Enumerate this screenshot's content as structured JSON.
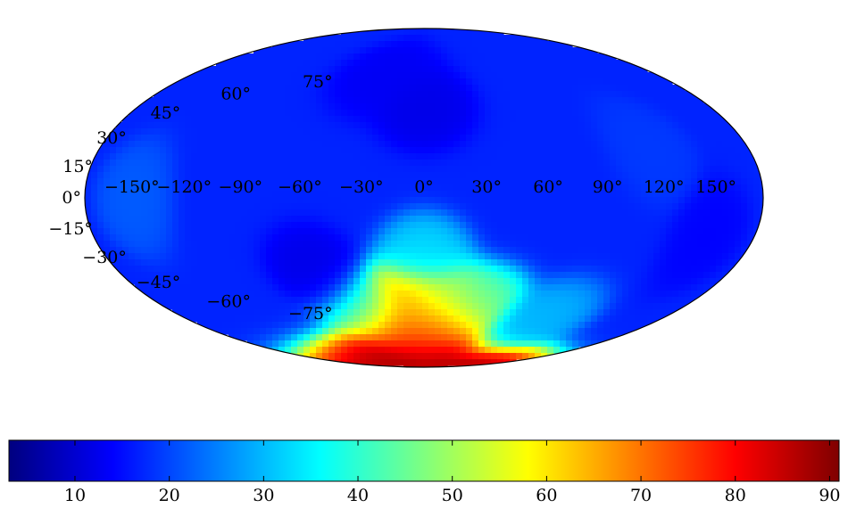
{
  "chart_data": {
    "type": "heatmap",
    "projection": "hammer",
    "title": "",
    "xlabel": "",
    "ylabel": "",
    "grid": false,
    "longitude_tick_labels": [
      {
        "value": -150,
        "label": "−150°"
      },
      {
        "value": -120,
        "label": "−120°"
      },
      {
        "value": -90,
        "label": "−90°"
      },
      {
        "value": -60,
        "label": "−60°"
      },
      {
        "value": -30,
        "label": "−30°"
      },
      {
        "value": 0,
        "label": "0°"
      },
      {
        "value": 30,
        "label": "30°"
      },
      {
        "value": 60,
        "label": "60°"
      },
      {
        "value": 90,
        "label": "90°"
      },
      {
        "value": 120,
        "label": "120°"
      },
      {
        "value": 150,
        "label": "150°"
      }
    ],
    "latitude_tick_labels": [
      {
        "value": 75,
        "label": "75°"
      },
      {
        "value": 60,
        "label": "60°"
      },
      {
        "value": 45,
        "label": "45°"
      },
      {
        "value": 30,
        "label": "30°"
      },
      {
        "value": 15,
        "label": "15°"
      },
      {
        "value": 0,
        "label": "0°"
      },
      {
        "value": -15,
        "label": "−15°"
      },
      {
        "value": -30,
        "label": "−30°"
      },
      {
        "value": -45,
        "label": "−45°"
      },
      {
        "value": -60,
        "label": "−60°"
      },
      {
        "value": -75,
        "label": "−75°"
      }
    ],
    "colormap": "jet",
    "colorbar": {
      "orientation": "horizontal",
      "placement": "bottom",
      "range": [
        3,
        91
      ],
      "ticks": [
        {
          "value": 10,
          "label": "10"
        },
        {
          "value": 20,
          "label": "20"
        },
        {
          "value": 30,
          "label": "30"
        },
        {
          "value": 40,
          "label": "40"
        },
        {
          "value": 50,
          "label": "50"
        },
        {
          "value": 60,
          "label": "60"
        },
        {
          "value": 70,
          "label": "70"
        },
        {
          "value": 80,
          "label": "80"
        },
        {
          "value": 90,
          "label": "90"
        }
      ],
      "colors": [
        "#00007f",
        "#0000ff",
        "#007fff",
        "#00ffff",
        "#7fff7f",
        "#ffff00",
        "#ff7f00",
        "#ff0000",
        "#7f0000"
      ]
    },
    "field_description_points": {
      "background": 17,
      "features": [
        {
          "lon": 0,
          "lat": -88,
          "value": 91
        },
        {
          "lon": 0,
          "lat": -82,
          "value": 85
        },
        {
          "lon": -5,
          "lat": -70,
          "value": 78
        },
        {
          "lon": -20,
          "lat": -65,
          "value": 74
        },
        {
          "lon": 18,
          "lat": -66,
          "value": 72
        },
        {
          "lon": -8,
          "lat": -50,
          "value": 68
        },
        {
          "lon": 0,
          "lat": -62,
          "value": 60
        },
        {
          "lon": 10,
          "lat": -50,
          "value": 50
        },
        {
          "lon": 35,
          "lat": -55,
          "value": 45
        },
        {
          "lon": -40,
          "lat": -55,
          "value": 40
        },
        {
          "lon": 0,
          "lat": -30,
          "value": 33
        },
        {
          "lon": -60,
          "lat": -35,
          "value": 12
        },
        {
          "lon": 0,
          "lat": 45,
          "value": 12
        },
        {
          "lon": -30,
          "lat": 60,
          "value": 13
        },
        {
          "lon": 150,
          "lat": -15,
          "value": 14
        },
        {
          "lon": 120,
          "lat": 20,
          "value": 19
        },
        {
          "lon": -150,
          "lat": 0,
          "value": 22
        },
        {
          "lon": 90,
          "lat": -60,
          "value": 30
        }
      ]
    }
  }
}
